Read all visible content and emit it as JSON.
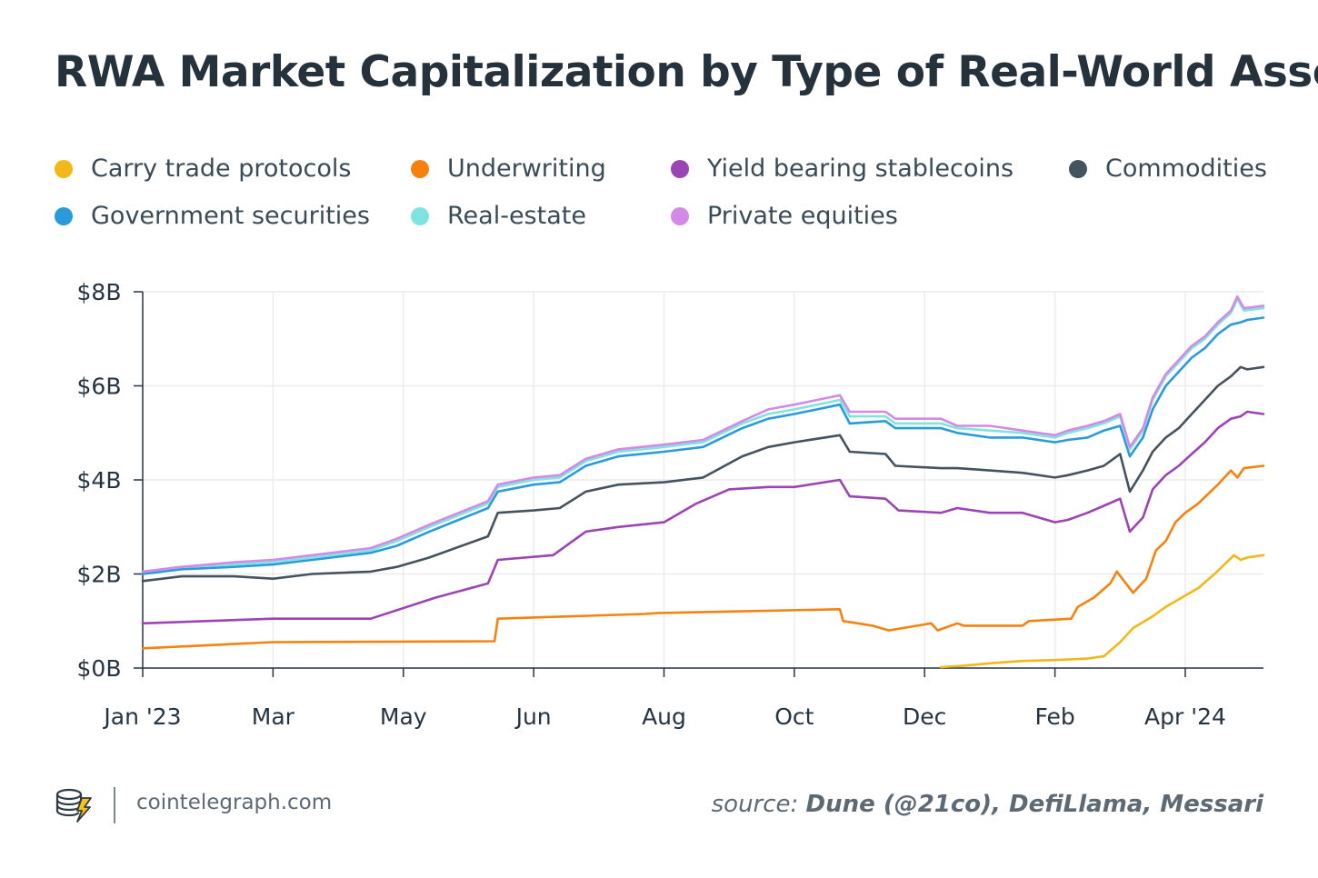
{
  "chart_data": {
    "type": "line",
    "title": "RWA Market Capitalization by Type of Real-World Asset",
    "xlabel": "",
    "ylabel": "",
    "ylim": [
      0,
      8
    ],
    "y_ticks": [
      "$0B",
      "$2B",
      "$4B",
      "$6B",
      "$8B"
    ],
    "x_ticks": [
      "Jan '23",
      "Mar",
      "May",
      "Jun",
      "Aug",
      "Oct",
      "Dec",
      "Feb",
      "Apr '24"
    ],
    "x_domain": [
      0,
      17.2
    ],
    "grid": true,
    "legend": [
      {
        "name": "Carry trade protocols",
        "color": "#f2b818"
      },
      {
        "name": "Underwriting",
        "color": "#f5820f"
      },
      {
        "name": "Yield bearing stablecoins",
        "color": "#9b44b4"
      },
      {
        "name": "Commodities",
        "color": "#45535e"
      },
      {
        "name": "Government securities",
        "color": "#2a9ad8"
      },
      {
        "name": "Real-estate",
        "color": "#7fe3e0"
      },
      {
        "name": "Private equities",
        "color": "#d28ae6"
      }
    ],
    "series": [
      {
        "name": "Carry trade protocols",
        "color": "#f2b818",
        "x": [
          12.25,
          12.6,
          13.0,
          13.5,
          14.0,
          14.5,
          14.75,
          15.0,
          15.2,
          15.5,
          15.7,
          15.95,
          16.2,
          16.45,
          16.6,
          16.75,
          16.85,
          16.95,
          17.2
        ],
        "y": [
          0.02,
          0.05,
          0.1,
          0.15,
          0.17,
          0.2,
          0.25,
          0.55,
          0.85,
          1.1,
          1.3,
          1.5,
          1.7,
          2.0,
          2.2,
          2.4,
          2.3,
          2.35,
          2.4
        ]
      },
      {
        "name": "Underwriting",
        "color": "#f5820f",
        "x": [
          0.0,
          2.0,
          5.4,
          5.45,
          7.7,
          7.9,
          10.7,
          10.75,
          11.2,
          11.45,
          12.1,
          12.2,
          12.5,
          12.6,
          13.5,
          13.6,
          14.25,
          14.35,
          14.6,
          14.85,
          14.95,
          15.2,
          15.4,
          15.55,
          15.7,
          15.85,
          16.0,
          16.2,
          16.5,
          16.7,
          16.8,
          16.9,
          17.2
        ],
        "y": [
          0.42,
          0.55,
          0.57,
          1.05,
          1.15,
          1.17,
          1.25,
          1.0,
          0.9,
          0.8,
          0.95,
          0.8,
          0.95,
          0.9,
          0.9,
          1.0,
          1.05,
          1.3,
          1.5,
          1.8,
          2.05,
          1.6,
          1.9,
          2.5,
          2.7,
          3.1,
          3.3,
          3.5,
          3.9,
          4.2,
          4.05,
          4.25,
          4.3
        ]
      },
      {
        "name": "Yield bearing stablecoins",
        "color": "#9b44b4",
        "x": [
          0.0,
          2.0,
          3.5,
          4.5,
          5.3,
          5.45,
          6.3,
          6.8,
          7.3,
          8.0,
          8.5,
          9.0,
          9.6,
          10.0,
          10.7,
          10.85,
          11.4,
          11.6,
          12.25,
          12.5,
          13.0,
          13.5,
          14.0,
          14.2,
          14.5,
          14.75,
          15.0,
          15.15,
          15.35,
          15.5,
          15.7,
          15.9,
          16.1,
          16.3,
          16.5,
          16.7,
          16.85,
          16.95,
          17.2
        ],
        "y": [
          0.95,
          1.05,
          1.05,
          1.5,
          1.8,
          2.3,
          2.4,
          2.9,
          3.0,
          3.1,
          3.5,
          3.8,
          3.85,
          3.85,
          4.0,
          3.65,
          3.6,
          3.35,
          3.3,
          3.4,
          3.3,
          3.3,
          3.1,
          3.15,
          3.3,
          3.45,
          3.6,
          2.9,
          3.2,
          3.8,
          4.1,
          4.3,
          4.55,
          4.8,
          5.1,
          5.3,
          5.35,
          5.45,
          5.4
        ]
      },
      {
        "name": "Commodities",
        "color": "#45535e",
        "x": [
          0.0,
          0.6,
          1.4,
          2.0,
          2.6,
          3.5,
          3.9,
          4.4,
          5.3,
          5.45,
          6.0,
          6.4,
          6.8,
          7.3,
          8.0,
          8.6,
          9.2,
          9.6,
          10.0,
          10.7,
          10.85,
          11.4,
          11.55,
          12.25,
          12.5,
          13.0,
          13.5,
          14.0,
          14.2,
          14.5,
          14.75,
          15.0,
          15.15,
          15.35,
          15.5,
          15.7,
          15.9,
          16.1,
          16.3,
          16.5,
          16.7,
          16.85,
          16.95,
          17.2
        ],
        "y": [
          1.85,
          1.95,
          1.95,
          1.9,
          2.0,
          2.05,
          2.15,
          2.35,
          2.8,
          3.3,
          3.35,
          3.4,
          3.75,
          3.9,
          3.95,
          4.05,
          4.5,
          4.7,
          4.8,
          4.95,
          4.6,
          4.55,
          4.3,
          4.25,
          4.25,
          4.2,
          4.15,
          4.05,
          4.1,
          4.2,
          4.3,
          4.55,
          3.75,
          4.2,
          4.6,
          4.9,
          5.1,
          5.4,
          5.7,
          6.0,
          6.2,
          6.4,
          6.35,
          6.4
        ]
      },
      {
        "name": "Government securities",
        "color": "#2a9ad8",
        "x": [
          0.0,
          0.6,
          1.4,
          2.0,
          2.6,
          3.5,
          3.9,
          4.4,
          5.3,
          5.45,
          6.0,
          6.4,
          6.8,
          7.3,
          8.0,
          8.6,
          9.2,
          9.6,
          10.0,
          10.7,
          10.85,
          11.4,
          11.55,
          12.25,
          12.5,
          13.0,
          13.5,
          14.0,
          14.2,
          14.5,
          14.75,
          15.0,
          15.15,
          15.35,
          15.5,
          15.7,
          15.9,
          16.1,
          16.3,
          16.5,
          16.7,
          16.85,
          16.95,
          17.2
        ],
        "y": [
          2.0,
          2.1,
          2.15,
          2.2,
          2.3,
          2.45,
          2.6,
          2.9,
          3.4,
          3.75,
          3.9,
          3.95,
          4.3,
          4.5,
          4.6,
          4.7,
          5.1,
          5.3,
          5.4,
          5.6,
          5.2,
          5.25,
          5.1,
          5.1,
          5.0,
          4.9,
          4.9,
          4.8,
          4.85,
          4.9,
          5.05,
          5.15,
          4.5,
          4.9,
          5.5,
          6.0,
          6.3,
          6.6,
          6.8,
          7.1,
          7.3,
          7.35,
          7.4,
          7.45
        ]
      },
      {
        "name": "Real-estate",
        "color": "#7fe3e0",
        "x": [
          0.0,
          0.6,
          1.4,
          2.0,
          2.6,
          3.5,
          3.9,
          4.4,
          5.3,
          5.45,
          6.0,
          6.4,
          6.8,
          7.3,
          8.0,
          8.6,
          9.2,
          9.6,
          10.0,
          10.7,
          10.85,
          11.4,
          11.55,
          12.25,
          12.5,
          13.0,
          13.5,
          14.0,
          14.2,
          14.5,
          14.75,
          15.0,
          15.15,
          15.35,
          15.5,
          15.7,
          15.9,
          16.1,
          16.3,
          16.5,
          16.7,
          16.8,
          16.9,
          17.2
        ],
        "y": [
          2.05,
          2.15,
          2.2,
          2.25,
          2.35,
          2.5,
          2.7,
          3.0,
          3.5,
          3.85,
          4.0,
          4.05,
          4.4,
          4.6,
          4.7,
          4.8,
          5.2,
          5.4,
          5.5,
          5.7,
          5.35,
          5.35,
          5.2,
          5.2,
          5.1,
          5.05,
          5.0,
          4.9,
          5.0,
          5.1,
          5.2,
          5.35,
          4.65,
          5.05,
          5.7,
          6.2,
          6.5,
          6.8,
          7.0,
          7.3,
          7.55,
          7.85,
          7.6,
          7.65
        ]
      },
      {
        "name": "Private equities",
        "color": "#d28ae6",
        "x": [
          0.0,
          0.6,
          1.4,
          2.0,
          2.6,
          3.5,
          3.9,
          4.4,
          5.3,
          5.45,
          6.0,
          6.4,
          6.8,
          7.3,
          8.0,
          8.6,
          9.2,
          9.6,
          10.0,
          10.7,
          10.85,
          11.4,
          11.55,
          12.25,
          12.5,
          13.0,
          13.5,
          14.0,
          14.2,
          14.5,
          14.75,
          15.0,
          15.15,
          15.35,
          15.5,
          15.7,
          15.9,
          16.1,
          16.3,
          16.5,
          16.7,
          16.8,
          16.9,
          17.2
        ],
        "y": [
          2.05,
          2.15,
          2.25,
          2.3,
          2.4,
          2.55,
          2.75,
          3.05,
          3.55,
          3.9,
          4.05,
          4.1,
          4.45,
          4.65,
          4.75,
          4.85,
          5.25,
          5.5,
          5.6,
          5.8,
          5.45,
          5.45,
          5.3,
          5.3,
          5.15,
          5.15,
          5.05,
          4.95,
          5.05,
          5.15,
          5.25,
          5.4,
          4.7,
          5.1,
          5.75,
          6.25,
          6.55,
          6.85,
          7.05,
          7.35,
          7.6,
          7.9,
          7.65,
          7.7
        ]
      }
    ]
  },
  "footer": {
    "site": "cointelegraph.com",
    "source_prefix": "source:",
    "source_names": "Dune (@21co), DefiLlama, Messari"
  }
}
